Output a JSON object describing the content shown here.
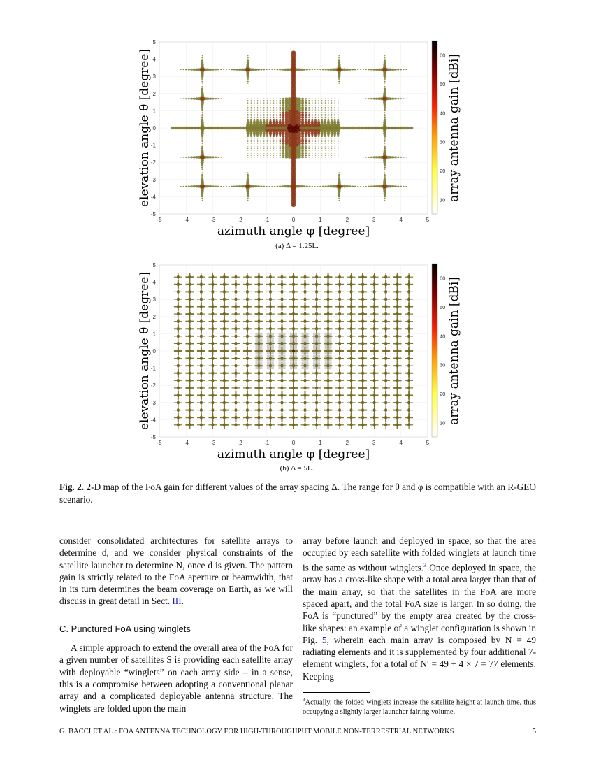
{
  "chart_data": [
    {
      "type": "heatmap",
      "title": "",
      "subcaption": "(a) Δ = 1.25L.",
      "xlabel": "azimuth angle φ [degree]",
      "ylabel": "elevation angle θ [degree]",
      "colorbar_label": "array antenna gain [dBi]",
      "xlim": [
        -5,
        5
      ],
      "ylim": [
        -5,
        5
      ],
      "xticks": [
        "-5",
        "-4",
        "-3",
        "-2",
        "-1",
        "0",
        "1",
        "2",
        "3",
        "4",
        "5"
      ],
      "yticks": [
        "5",
        "4",
        "3",
        "2",
        "1",
        "0",
        "-1",
        "-2",
        "-3",
        "-4",
        "-5"
      ],
      "colorbar_range": [
        5,
        65
      ],
      "colorbar_ticks": [
        "60",
        "50",
        "40",
        "30",
        "20",
        "10"
      ],
      "lobe_spacing_deg": 1.7,
      "peak_gain_dBi": 65,
      "grid": true
    },
    {
      "type": "heatmap",
      "title": "",
      "subcaption": "(b) Δ = 5L.",
      "xlabel": "azimuth angle φ [degree]",
      "ylabel": "elevation angle θ [degree]",
      "colorbar_label": "array antenna gain [dBi]",
      "xlim": [
        -5,
        5
      ],
      "ylim": [
        -5,
        5
      ],
      "xticks": [
        "-5",
        "-4",
        "-3",
        "-2",
        "-1",
        "0",
        "1",
        "2",
        "3",
        "4",
        "5"
      ],
      "yticks": [
        "5",
        "4",
        "3",
        "2",
        "1",
        "0",
        "-1",
        "-2",
        "-3",
        "-4",
        "-5"
      ],
      "colorbar_range": [
        5,
        65
      ],
      "colorbar_ticks": [
        "60",
        "50",
        "40",
        "30",
        "20",
        "10"
      ],
      "lobe_spacing_deg": 0.43,
      "grid": true
    }
  ],
  "caption": {
    "label": "Fig. 2.",
    "text": " 2-D map of the FoA gain for different values of the array spacing Δ. The range for θ and φ is compatible with an R-GEO scenario."
  },
  "left_column": {
    "p1": "consider consolidated architectures for satellite arrays to determine d, and we consider physical constraints of the satellite launcher to determine N, once d is given. The pattern gain is strictly related to the FoA aperture or beamwidth, that in its turn determines the beam coverage on Earth, as we will discuss in great detail in Sect. ",
    "p1_link": "III",
    "p1_end": ".",
    "heading": "C.   Punctured FoA using winglets",
    "p2": "A simple approach to extend the overall area of the FoA for a given number of satellites S is providing each satellite array with deployable “winglets” on each array side – in a sense, this is a compromise between adopting a conventional planar array and a complicated deployable antenna structure. The winglets are folded upon the main"
  },
  "right_column": {
    "p1a": "array before launch and deployed in space, so that the area occupied by each satellite with folded winglets at launch time is the same as without winglets.",
    "fn_mark": "3",
    "p1b": " Once deployed in space, the array has a cross-like shape with a total area larger than that of the main array, so that the satellites in the FoA are more spaced apart, and the total FoA size is larger. In so doing, the FoA is “punctured” by the empty area created by the cross-like shapes: an example of a winglet configuration is shown in Fig. ",
    "p1_link": "5",
    "p1c": ", wherein each main array is composed by N = 49 radiating elements and it is supplemented by four additional 7-element winglets, for a total of N′ = 49 + 4 × 7 = 77 elements. Keeping",
    "footnote": "Actually, the folded winglets increase the satellite height at launch time, thus occupying a slightly larger launcher fairing volume."
  },
  "footer": {
    "running_head": "G. BACCI ET AL.: FOA ANTENNA TECHNOLOGY FOR HIGH-THROUGHPUT MOBILE NON-TERRESTRIAL NETWORKS",
    "page_number": "5"
  }
}
